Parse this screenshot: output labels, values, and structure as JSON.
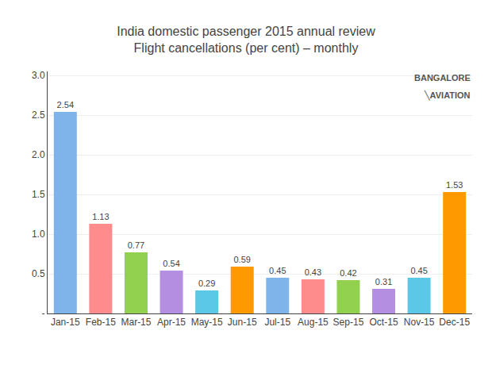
{
  "chart_data": {
    "type": "bar",
    "title": "India domestic passenger 2015 annual review",
    "subtitle": "Flight cancellations (per cent) – monthly",
    "categories": [
      "Jan-15",
      "Feb-15",
      "Mar-15",
      "Apr-15",
      "May-15",
      "Jun-15",
      "Jul-15",
      "Aug-15",
      "Sep-15",
      "Oct-15",
      "Nov-15",
      "Dec-15"
    ],
    "values": [
      2.54,
      1.13,
      0.77,
      0.54,
      0.29,
      0.59,
      0.45,
      0.43,
      0.42,
      0.31,
      0.45,
      1.53
    ],
    "colors": [
      "#7EB4EA",
      "#FF8C8C",
      "#92D050",
      "#B48EE0",
      "#5BC8E8",
      "#FF9900",
      "#7EB4EA",
      "#FF8C8C",
      "#92D050",
      "#B48EE0",
      "#5BC8E8",
      "#FF9900"
    ],
    "ylim": [
      0,
      3.05
    ],
    "yticks": [
      {
        "value": 0,
        "label": "-"
      },
      0.5,
      {
        "value": 1,
        "label": "1.0"
      },
      1.5,
      {
        "value": 2,
        "label": "2.0"
      },
      2.5,
      {
        "value": 3,
        "label": "3.0"
      }
    ],
    "grid": true,
    "data_labels": true,
    "annotations": [
      "BANGALORE",
      "╲AVIATION"
    ]
  }
}
